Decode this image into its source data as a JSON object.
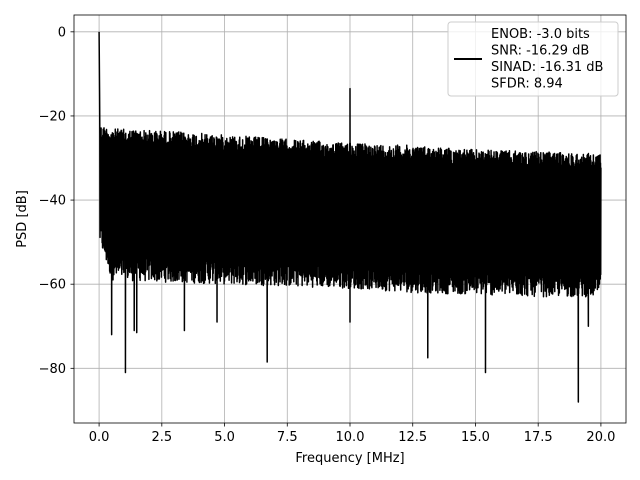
{
  "chart_data": {
    "type": "line",
    "xlabel": "Frequency [MHz]",
    "ylabel": "PSD [dB]",
    "xlim": [
      -1.0,
      21.0
    ],
    "ylim": [
      -93,
      4
    ],
    "xticks": [
      0.0,
      2.5,
      5.0,
      7.5,
      10.0,
      12.5,
      15.0,
      17.5,
      20.0
    ],
    "xtick_labels": [
      "0.0",
      "2.5",
      "5.0",
      "7.5",
      "10.0",
      "12.5",
      "15.0",
      "17.5",
      "20.0"
    ],
    "yticks": [
      0,
      -20,
      -40,
      -60,
      -80
    ],
    "ytick_labels": [
      "0",
      "−20",
      "−40",
      "−60",
      "−80"
    ],
    "grid": true,
    "legend_position": "top-right",
    "series": [
      {
        "legend_lines": [
          "ENOB: -3.0 bits",
          "SNR: -16.29 dB",
          "SINAD: -16.31 dB",
          "SFDR: 8.94"
        ],
        "color": "#000000",
        "x_range": [
          0.0,
          20.0
        ],
        "upper_envelope": [
          [
            0.0,
            -22
          ],
          [
            0.5,
            -23
          ],
          [
            2.5,
            -23.5
          ],
          [
            5.0,
            -24.5
          ],
          [
            7.5,
            -25.5
          ],
          [
            10.0,
            -26.5
          ],
          [
            12.5,
            -27
          ],
          [
            15.0,
            -28
          ],
          [
            17.5,
            -28.5
          ],
          [
            20.0,
            -29
          ]
        ],
        "lower_envelope": [
          [
            0.0,
            -48
          ],
          [
            0.5,
            -57
          ],
          [
            2.5,
            -57.5
          ],
          [
            5.0,
            -58
          ],
          [
            7.5,
            -58.5
          ],
          [
            10.0,
            -59
          ],
          [
            12.5,
            -60
          ],
          [
            15.0,
            -60.5
          ],
          [
            17.5,
            -61
          ],
          [
            20.0,
            -61
          ]
        ],
        "peaks": [
          {
            "x": 0.0,
            "y": 0
          },
          {
            "x": 0.02,
            "y": -15
          },
          {
            "x": 10.0,
            "y": -13.5
          }
        ],
        "notable_dips": [
          {
            "x": 0.5,
            "y": -72
          },
          {
            "x": 1.05,
            "y": -81
          },
          {
            "x": 1.4,
            "y": -71
          },
          {
            "x": 1.5,
            "y": -71.5
          },
          {
            "x": 3.4,
            "y": -71
          },
          {
            "x": 4.7,
            "y": -69
          },
          {
            "x": 6.7,
            "y": -78.5
          },
          {
            "x": 10.0,
            "y": -69
          },
          {
            "x": 13.1,
            "y": -77.5
          },
          {
            "x": 15.4,
            "y": -81
          },
          {
            "x": 19.1,
            "y": -88
          },
          {
            "x": 19.5,
            "y": -70
          }
        ]
      }
    ]
  }
}
